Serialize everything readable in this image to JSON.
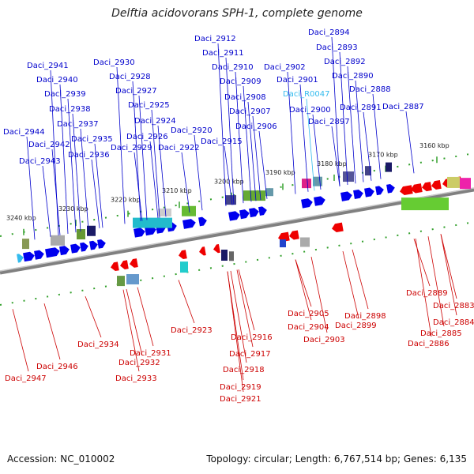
{
  "title": "Delftia acidovorans SPH-1, complete genome",
  "footer": {
    "accession": "Accession: NC_010002",
    "stats": "Topology: circular; Length: 6,767,514 bp; Genes: 6,135"
  },
  "ticks": [
    "3240 kbp",
    "3230 kbp",
    "3220 kbp",
    "3210 kbp",
    "3200 kbp",
    "3190 kbp",
    "3180 kbp",
    "3170 kbp",
    "3160 kbp"
  ],
  "colors": {
    "forward": "#0000ee",
    "reverse": "#ee0000",
    "rna": "#33bbee",
    "backbone": "#808080",
    "scale": "#33a02c"
  },
  "top_labels": [
    "Daci_2944",
    "Daci_2943",
    "Daci_2942",
    "Daci_2941",
    "Daci_2940",
    "Daci_2939",
    "Daci_2938",
    "Daci_2937",
    "Daci_2936",
    "Daci_2935",
    "Daci_2930",
    "Daci_2929",
    "Daci_2928",
    "Daci_2927",
    "Daci_2926",
    "Daci_2925",
    "Daci_2924",
    "Daci_2922",
    "Daci_2920",
    "Daci_2915",
    "Daci_2912",
    "Daci_2911",
    "Daci_2910",
    "Daci_2909",
    "Daci_2908",
    "Daci_2907",
    "Daci_2906",
    "Daci_2902",
    "Daci_2901",
    "Daci_R0047",
    "Daci_2900",
    "Daci_2897",
    "Daci_2894",
    "Daci_2893",
    "Daci_2892",
    "Daci_2891",
    "Daci_2890",
    "Daci_2888",
    "Daci_2887"
  ],
  "bottom_labels": [
    "Daci_2947",
    "Daci_2946",
    "Daci_2934",
    "Daci_2933",
    "Daci_2932",
    "Daci_2931",
    "Daci_2923",
    "Daci_2921",
    "Daci_2919",
    "Daci_2918",
    "Daci_2917",
    "Daci_2916",
    "Daci_2905",
    "Daci_2904",
    "Daci_2903",
    "Daci_2899",
    "Daci_2898",
    "Daci_2889",
    "Daci_2886",
    "Daci_2885",
    "Daci_2884",
    "Daci_2883"
  ]
}
